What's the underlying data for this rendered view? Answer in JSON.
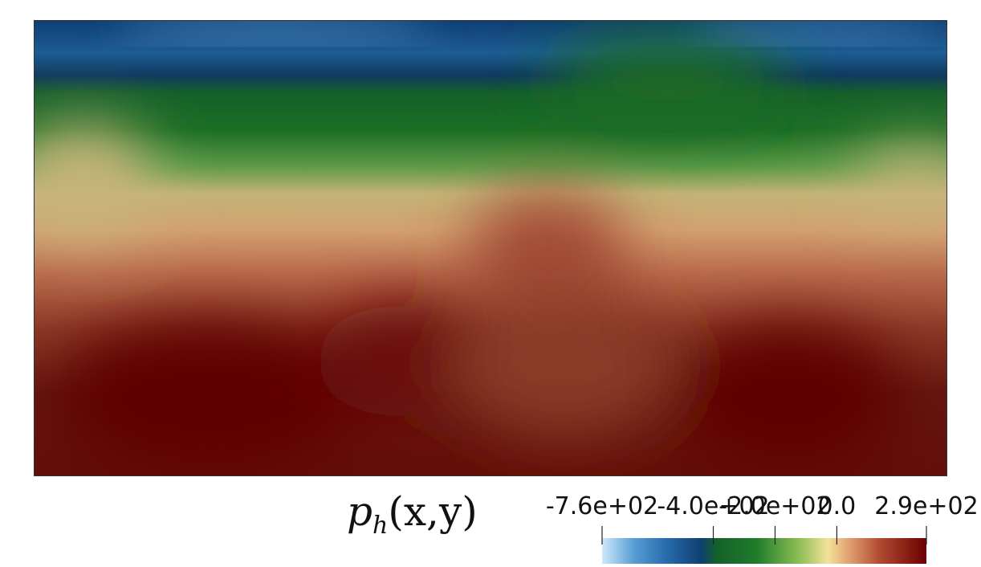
{
  "chart_data": {
    "type": "heatmap",
    "title": "",
    "field_label": {
      "symbol": "p",
      "subscript": "h",
      "args": "(x,y)"
    },
    "colorbar": {
      "range": [
        -760,
        290
      ],
      "ticks": [
        {
          "value": -760,
          "label": "-7.6e+02"
        },
        {
          "value": -400,
          "label": "-4.0e+02"
        },
        {
          "value": -200,
          "label": "-2.0e+02"
        },
        {
          "value": 0,
          "label": "0.0"
        },
        {
          "value": 290,
          "label": "2.9e+02"
        }
      ],
      "colors": [
        {
          "value": -760,
          "color": "#d0e8fa"
        },
        {
          "value": -660,
          "color": "#5aa0d6"
        },
        {
          "value": -560,
          "color": "#2a6fb0"
        },
        {
          "value": -440,
          "color": "#0f3f72"
        },
        {
          "value": -390,
          "color": "#15602a"
        },
        {
          "value": -260,
          "color": "#1e7c2a"
        },
        {
          "value": -120,
          "color": "#8fbf55"
        },
        {
          "value": -30,
          "color": "#f2e29a"
        },
        {
          "value": 40,
          "color": "#e0a070"
        },
        {
          "value": 140,
          "color": "#b04a30"
        },
        {
          "value": 290,
          "color": "#6a0000"
        }
      ]
    }
  }
}
